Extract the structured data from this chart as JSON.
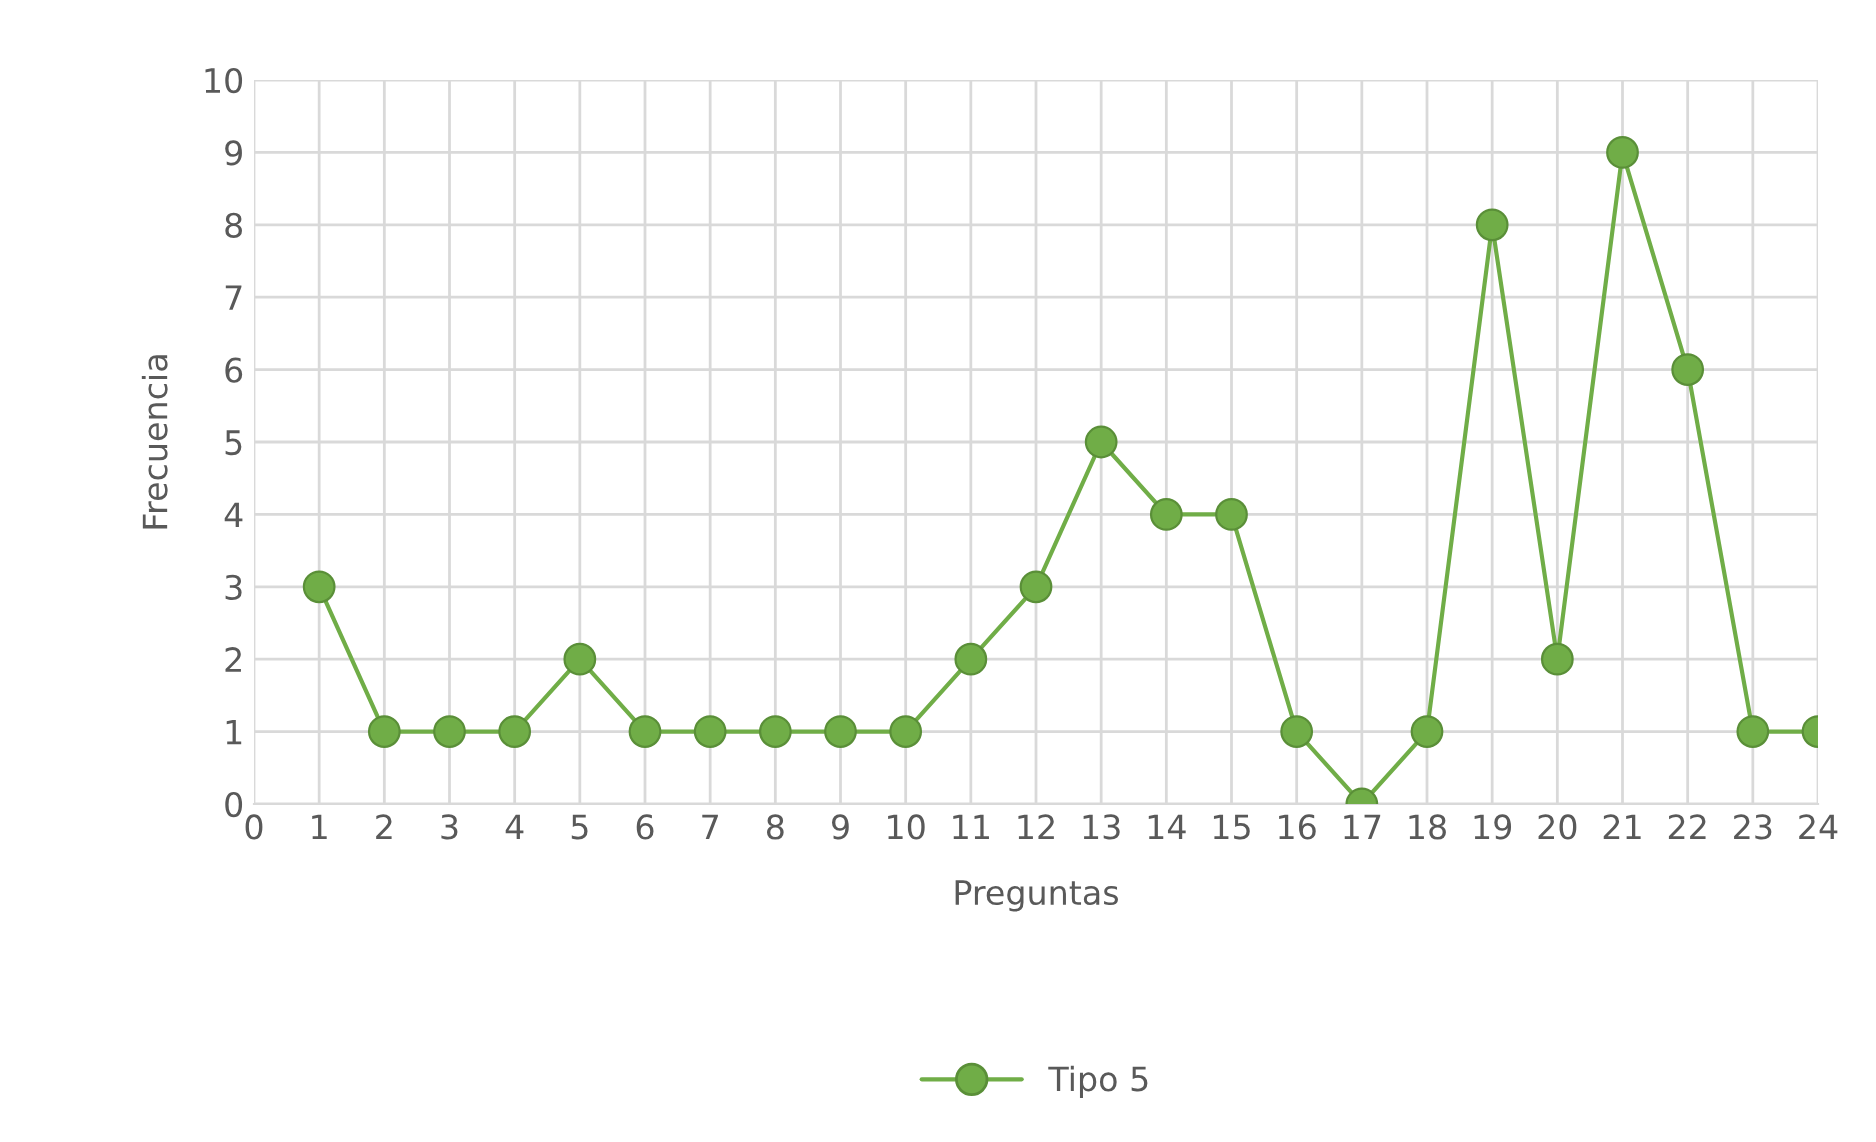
{
  "chart_data": {
    "type": "line",
    "xlabel": "Preguntas",
    "ylabel": "Frecuencia",
    "x": [
      1,
      2,
      3,
      4,
      5,
      6,
      7,
      8,
      9,
      10,
      11,
      12,
      13,
      14,
      15,
      16,
      17,
      18,
      19,
      20,
      21,
      22,
      23,
      24
    ],
    "series": [
      {
        "name": "Tipo 5",
        "color": "#70ad47",
        "values": [
          3,
          1,
          1,
          1,
          2,
          1,
          1,
          1,
          1,
          1,
          2,
          3,
          5,
          4,
          4,
          1,
          0,
          1,
          8,
          2,
          9,
          6,
          1,
          1
        ]
      }
    ],
    "xlim": [
      0,
      24
    ],
    "xticks": [
      0,
      1,
      2,
      3,
      4,
      5,
      6,
      7,
      8,
      9,
      10,
      11,
      12,
      13,
      14,
      15,
      16,
      17,
      18,
      19,
      20,
      21,
      22,
      23,
      24
    ],
    "ylim": [
      0,
      10
    ],
    "yticks": [
      0,
      1,
      2,
      3,
      4,
      5,
      6,
      7,
      8,
      9,
      10
    ],
    "grid": true,
    "legend": "bottom",
    "marker": "circle",
    "line_style": "solid"
  }
}
